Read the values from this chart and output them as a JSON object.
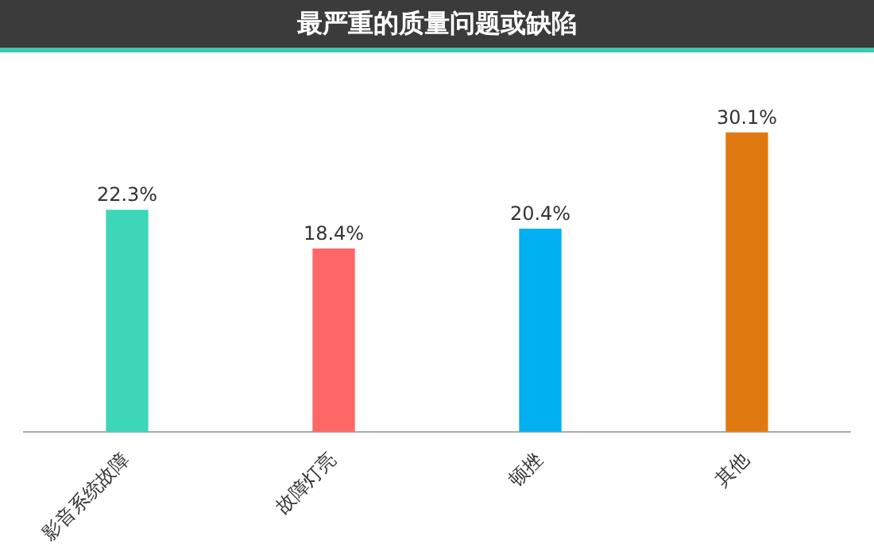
{
  "chart_data": {
    "type": "bar",
    "title": "最严重的质量问题或缺陷",
    "categories": [
      "影音系统故障",
      "故障灯亮",
      "顿挫",
      "其他"
    ],
    "values": [
      22.3,
      18.4,
      20.4,
      30.1
    ],
    "colors": [
      "#3dd6b8",
      "#ff6666",
      "#00b0f0",
      "#e07a10"
    ],
    "value_labels": [
      "22.3%",
      "18.4%",
      "20.4%",
      "30.1%"
    ],
    "grid": false,
    "legend": false
  }
}
